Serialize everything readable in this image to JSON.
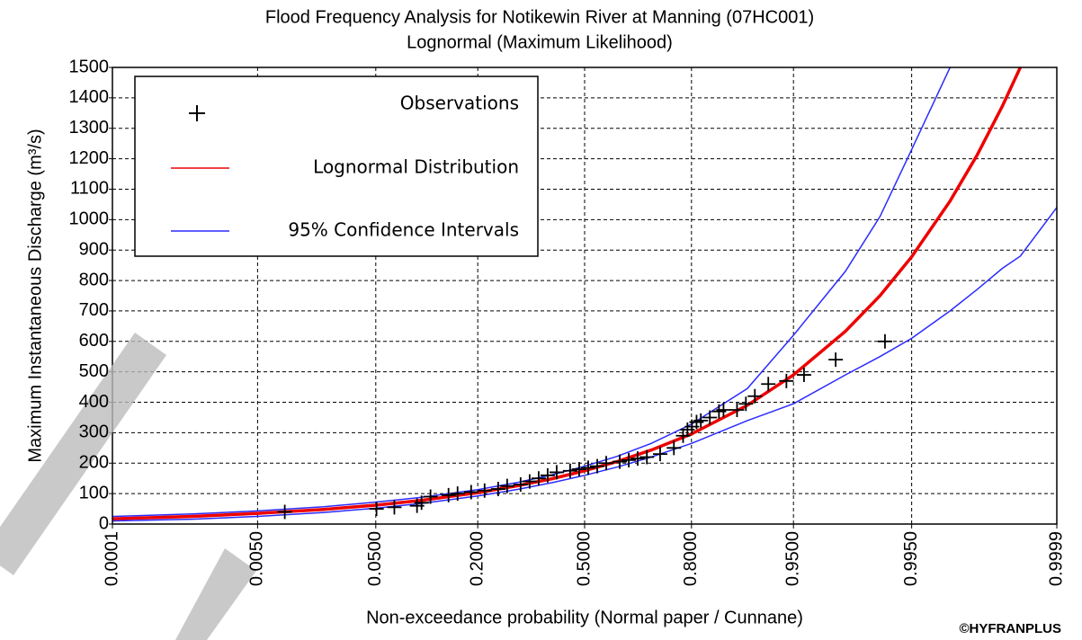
{
  "chart_data": {
    "type": "line",
    "title": "Flood Frequency Analysis for Notikewin River at Manning (07HC001)",
    "subtitle": "Lognormal (Maximum Likelihood)",
    "x_label": "Non-exceedance probability (Normal paper / Cunnane)",
    "y_label": "Maximum Instantaneous Discharge (m³/s)",
    "watermark": "©HYFRANPLUS",
    "x_scale": "normal",
    "grid": true,
    "legend_position": "upper left",
    "xlim": [
      0.0001,
      0.9999
    ],
    "xticks": [
      0.0001,
      {
        "value": 0.005,
        "label": "0.0050"
      },
      {
        "value": 0.05,
        "label": "0.0500"
      },
      {
        "value": 0.2,
        "label": "0.2000"
      },
      {
        "value": 0.5,
        "label": "0.5000"
      },
      {
        "value": 0.8,
        "label": "0.8000"
      },
      {
        "value": 0.95,
        "label": "0.9500"
      },
      {
        "value": 0.995,
        "label": "0.9950"
      },
      0.9999
    ],
    "ylim": [
      0,
      1500
    ],
    "yticks": [
      0,
      100,
      200,
      300,
      400,
      500,
      600,
      700,
      800,
      900,
      1000,
      1100,
      1200,
      1300,
      1400,
      1500
    ],
    "x": [
      0.0001,
      0.001,
      0.005,
      0.02,
      0.05,
      0.1,
      0.2,
      0.3,
      0.4,
      0.5,
      0.6,
      0.7,
      0.8,
      0.9,
      0.95,
      0.98,
      0.99,
      0.995,
      0.998,
      0.999,
      0.9995,
      0.9997,
      0.9999
    ],
    "series": [
      {
        "name": "Lognormal Distribution",
        "color": "#ee0000",
        "width": 3.5,
        "values": [
          17,
          25,
          35,
          48,
          62,
          78,
          103,
          126,
          149,
          175,
          205,
          243,
          296,
          390,
          490,
          633,
          750,
          878,
          1061,
          1211,
          1373,
          1500,
          null
        ]
      },
      {
        "name": "95% Confidence Intervals",
        "color": "#2b2bff",
        "width": 1.5,
        "values": [
          25,
          33,
          43,
          57,
          72,
          88,
          113,
          137,
          162,
          190,
          222,
          265,
          328,
          445,
          620,
          830,
          1010,
          1230,
          1500,
          null,
          null,
          null,
          null
        ]
      },
      {
        "color": "#2b2bff",
        "width": 1.5,
        "values": [
          10,
          16,
          25,
          38,
          52,
          68,
          92,
          114,
          136,
          160,
          187,
          220,
          265,
          340,
          395,
          490,
          550,
          610,
          700,
          770,
          840,
          880,
          1040
        ]
      }
    ],
    "observations": {
      "name": "Observations",
      "color": "#000000",
      "x": [
        0.0091,
        0.0506,
        0.067,
        0.0934,
        0.0995,
        0.1124,
        0.1419,
        0.1585,
        0.1857,
        0.2154,
        0.2479,
        0.2709,
        0.3071,
        0.3325,
        0.3587,
        0.3855,
        0.4129,
        0.4546,
        0.4829,
        0.5113,
        0.5396,
        0.5676,
        0.609,
        0.636,
        0.662,
        0.688,
        0.724,
        0.759,
        0.781,
        0.791,
        0.801,
        0.811,
        0.82,
        0.838,
        0.855,
        0.863,
        0.885,
        0.898,
        0.91,
        0.926,
        0.944,
        0.958,
        0.976,
        0.991
      ],
      "values": [
        40,
        50,
        55,
        60,
        70,
        90,
        95,
        100,
        105,
        110,
        115,
        125,
        130,
        140,
        150,
        160,
        170,
        175,
        180,
        185,
        190,
        200,
        205,
        210,
        215,
        220,
        230,
        250,
        290,
        310,
        320,
        335,
        340,
        350,
        370,
        375,
        375,
        395,
        420,
        460,
        470,
        490,
        540,
        600
      ]
    }
  }
}
